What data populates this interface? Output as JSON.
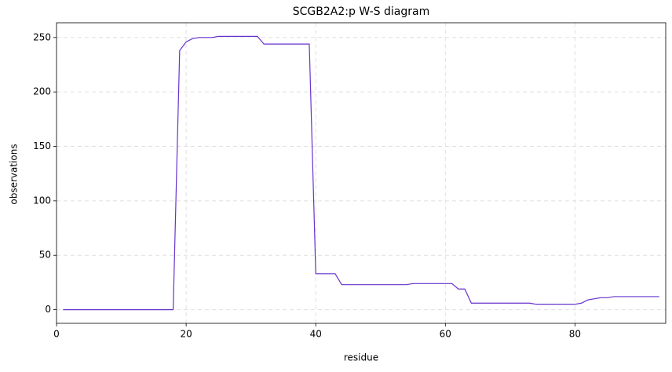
{
  "chart_data": {
    "type": "line",
    "title": "SCGB2A2:p W-S diagram",
    "x_label": "residue",
    "y_label": "observations",
    "x": [
      1,
      2,
      3,
      4,
      5,
      6,
      7,
      8,
      9,
      10,
      11,
      12,
      13,
      14,
      15,
      16,
      17,
      18,
      19,
      20,
      21,
      22,
      23,
      24,
      25,
      26,
      27,
      28,
      29,
      30,
      31,
      32,
      33,
      34,
      35,
      36,
      37,
      38,
      39,
      40,
      41,
      42,
      43,
      44,
      45,
      46,
      47,
      48,
      49,
      50,
      51,
      52,
      53,
      54,
      55,
      56,
      57,
      58,
      59,
      60,
      61,
      62,
      63,
      64,
      65,
      66,
      67,
      68,
      69,
      70,
      71,
      72,
      73,
      74,
      75,
      76,
      77,
      78,
      79,
      80,
      81,
      82,
      83,
      84,
      85,
      86,
      87,
      88,
      89,
      90,
      91,
      92,
      93
    ],
    "series": [
      {
        "color": "#6633cc",
        "values": [
          0,
          0,
          0,
          0,
          0,
          0,
          0,
          0,
          0,
          0,
          0,
          0,
          0,
          0,
          0,
          0,
          0,
          0,
          238,
          246,
          249,
          250,
          250,
          250,
          251,
          251,
          251,
          251,
          251,
          251,
          251,
          244,
          244,
          244,
          244,
          244,
          244,
          244,
          244,
          33,
          33,
          33,
          33,
          23,
          23,
          23,
          23,
          23,
          23,
          23,
          23,
          23,
          23,
          23,
          24,
          24,
          24,
          24,
          24,
          24,
          24,
          19,
          19,
          6,
          6,
          6,
          6,
          6,
          6,
          6,
          6,
          6,
          6,
          5,
          5,
          5,
          5,
          5,
          5,
          5,
          6,
          9,
          10,
          11,
          11,
          12,
          12,
          12,
          12,
          12,
          12,
          12,
          12
        ]
      }
    ],
    "xlim": [
      0,
      94
    ],
    "ylim": [
      -12.55,
      263.55
    ],
    "xticks": [
      0,
      20,
      40,
      60,
      80
    ],
    "yticks": [
      0,
      50,
      100,
      150,
      200,
      250
    ],
    "grid": true
  }
}
